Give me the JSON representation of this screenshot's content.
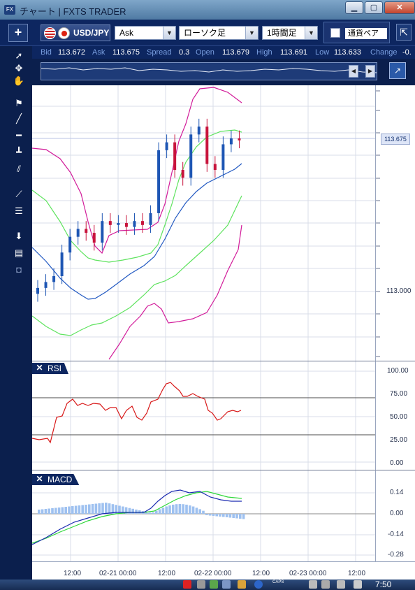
{
  "window": {
    "title": "チャート | FXTS TRADER",
    "app_icon": "FX",
    "min": "▁",
    "max": "▢",
    "close": "✕"
  },
  "toolbar": {
    "add_label": "+",
    "pair": "USD/JPY",
    "price_type": "Ask",
    "chart_type": "ローソク足",
    "timeframe": "1時間足",
    "compare_label": "通貨ペア",
    "detach_icon": "⇱"
  },
  "quotes": [
    {
      "label": "Bid",
      "value": "113.672"
    },
    {
      "label": "Ask",
      "value": "113.675"
    },
    {
      "label": "Spread",
      "value": "0.3"
    },
    {
      "label": "Open",
      "value": "113.679"
    },
    {
      "label": "High",
      "value": "113.691"
    },
    {
      "label": "Low",
      "value": "113.633"
    },
    {
      "label": "Change",
      "value": "-0."
    }
  ],
  "price_panel": {
    "current_price": "113.675",
    "axis_label": "113.000",
    "colors": {
      "candle": "#1e56b4",
      "candle_down": "#c8143c",
      "upper_band": "#d21c9a",
      "lower_band": "#d21c9a",
      "sma_green": "#5fe35f",
      "sma_blue": "#2259c2"
    }
  },
  "rsi": {
    "label": "RSI",
    "ticks": [
      "100.00",
      "75.00",
      "50.00",
      "25.00",
      "0.00"
    ],
    "color": "#d81818"
  },
  "macd": {
    "label": "MACD",
    "ticks": [
      "0.14",
      "0.00",
      "-0.14",
      "-0.28"
    ],
    "colors": {
      "macd": "#1a2ab0",
      "signal": "#2fd83a",
      "hist": "#9ec1f0"
    }
  },
  "time_axis": [
    "12:00",
    "02-21 00:00",
    "12:00",
    "02-22 00:00",
    "12:00",
    "02-23 00:00",
    "12:00"
  ],
  "taskbar": {
    "caps": "CAPS",
    "clock": "7:50"
  },
  "chart_data": [
    {
      "type": "candlestick",
      "title": "",
      "current_value": 113.675,
      "y_tick": 113.0,
      "series": [
        {
          "name": "",
          "values_close_approx": [
            112.92,
            112.95,
            112.98,
            113.1,
            113.18,
            113.22,
            113.2,
            113.15,
            113.26,
            113.24,
            113.25,
            113.23,
            113.26,
            113.24,
            113.3,
            113.62,
            113.66,
            113.52,
            113.48,
            113.7,
            113.74,
            113.55,
            113.52,
            113.65,
            113.68,
            113.67
          ]
        }
      ]
    },
    {
      "type": "line",
      "title": "RSI",
      "ylim": [
        0,
        100
      ],
      "y_ticks": [
        100,
        75,
        50,
        25,
        0
      ]
    },
    {
      "type": "line",
      "title": "MACD",
      "ylim": [
        -0.28,
        0.16
      ],
      "y_ticks": [
        0.14,
        0.0,
        -0.14,
        -0.28
      ]
    }
  ]
}
